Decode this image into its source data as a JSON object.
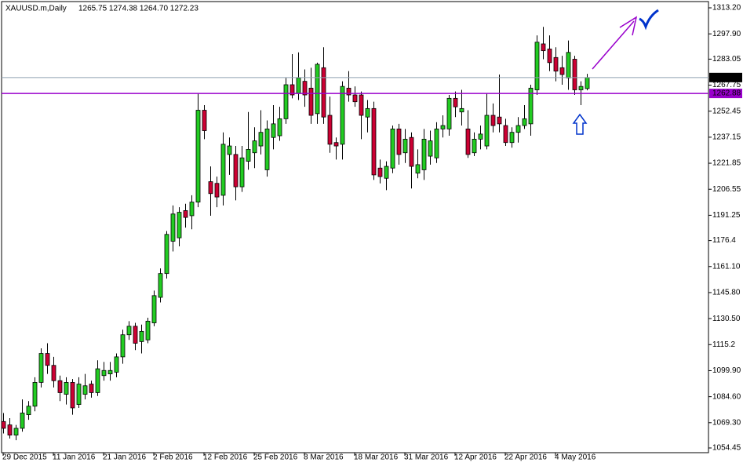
{
  "chart_data": {
    "type": "candlestick",
    "title": "XAUUSD.m,Daily",
    "subtitle": "1265.75 1274.38 1264.70 1272.23",
    "categories": [
      "29 Dec 2015",
      null,
      null,
      null,
      null,
      null,
      null,
      null,
      "11 Jan 2016",
      null,
      null,
      null,
      null,
      null,
      null,
      null,
      "21 Jan 2016",
      null,
      null,
      null,
      null,
      null,
      null,
      null,
      "2 Feb 2016",
      null,
      null,
      null,
      null,
      null,
      null,
      null,
      "12 Feb 2016",
      null,
      null,
      null,
      null,
      null,
      null,
      null,
      "25 Feb 2016",
      null,
      null,
      null,
      null,
      null,
      null,
      null,
      "8 Mar 2016",
      null,
      null,
      null,
      null,
      null,
      null,
      null,
      "18 Mar 2016",
      null,
      null,
      null,
      null,
      null,
      null,
      null,
      "31 Mar 2016",
      null,
      null,
      null,
      null,
      null,
      null,
      null,
      "12 Apr 2016",
      null,
      null,
      null,
      null,
      null,
      null,
      null,
      "22 Apr 2016",
      null,
      null,
      null,
      null,
      null,
      null,
      null,
      "4 May 2016",
      null,
      null,
      null,
      null,
      null
    ],
    "open": [
      1070,
      1068,
      1062,
      1066,
      1074,
      1079,
      1093,
      1110,
      1103,
      1094,
      1086,
      1093,
      1080,
      1086,
      1092,
      1087,
      1097,
      1098,
      1099,
      1108,
      1121,
      1126,
      1117,
      1118,
      1128,
      1143,
      1157,
      1176,
      1178,
      1194,
      1191,
      1199,
      1253,
      1211,
      1210,
      1203,
      1227,
      1227,
      1208,
      1223,
      1228,
      1232,
      1218,
      1237,
      1238,
      1248,
      1268,
      1263,
      1270,
      1266,
      1251,
      1278,
      1250,
      1234,
      1233,
      1266,
      1262,
      1262,
      1249,
      1254,
      1219,
      1213,
      1219,
      1242,
      1228,
      1237,
      1216,
      1218,
      1226,
      1225,
      1242,
      1242,
      1260,
      1252,
      1242,
      1228,
      1236,
      1232,
      1250,
      1249,
      1244,
      1234,
      1240,
      1244,
      1245,
      1265,
      1292,
      1289,
      1284,
      1278,
      1272,
      1283,
      1265,
      1265.75
    ],
    "high": [
      1075,
      1072,
      1068,
      1083,
      1082,
      1096,
      1113,
      1116,
      1108,
      1097,
      1096,
      1095,
      1096,
      1098,
      1094,
      1106,
      1105,
      1105,
      1110,
      1124,
      1129,
      1128,
      1127,
      1131,
      1147,
      1160,
      1182,
      1197,
      1196,
      1198,
      1203,
      1263,
      1256,
      1220,
      1214,
      1240,
      1237,
      1232,
      1232,
      1252,
      1243,
      1253,
      1247,
      1256,
      1255,
      1272,
      1286,
      1287,
      1277,
      1278,
      1281,
      1290,
      1261,
      1237,
      1270,
      1276,
      1267,
      1264,
      1259,
      1258,
      1224,
      1223,
      1244,
      1245,
      1242,
      1240,
      1230,
      1242,
      1241,
      1246,
      1250,
      1262,
      1264,
      1265,
      1253,
      1240,
      1244,
      1263,
      1257,
      1274,
      1248,
      1243,
      1249,
      1256,
      1268,
      1297,
      1302,
      1297,
      1290,
      1285,
      1294,
      1285,
      1270,
      1274.38
    ],
    "low": [
      1063,
      1060,
      1059,
      1064,
      1071,
      1076,
      1090,
      1098,
      1090,
      1082,
      1080,
      1074,
      1078,
      1083,
      1084,
      1085,
      1094,
      1094,
      1096,
      1104,
      1118,
      1112,
      1110,
      1116,
      1126,
      1140,
      1154,
      1170,
      1173,
      1184,
      1183,
      1196,
      1236,
      1191,
      1196,
      1197,
      1215,
      1200,
      1205,
      1218,
      1219,
      1227,
      1214,
      1230,
      1235,
      1245,
      1260,
      1259,
      1255,
      1245,
      1245,
      1245,
      1228,
      1224,
      1224,
      1258,
      1255,
      1236,
      1240,
      1212,
      1210,
      1206,
      1216,
      1221,
      1222,
      1207,
      1213,
      1212,
      1221,
      1222,
      1237,
      1238,
      1249,
      1244,
      1225,
      1226,
      1230,
      1230,
      1240,
      1240,
      1232,
      1231,
      1234,
      1242,
      1238,
      1262,
      1283,
      1276,
      1270,
      1268,
      1265,
      1262,
      1256,
      1264.7
    ],
    "close": [
      1066,
      1062,
      1066,
      1075,
      1079,
      1093,
      1110,
      1103,
      1094,
      1087,
      1093,
      1078,
      1092,
      1091,
      1087,
      1101,
      1100,
      1100,
      1108,
      1121,
      1126,
      1116,
      1123,
      1129,
      1144,
      1157,
      1180,
      1192,
      1193,
      1190,
      1199,
      1253,
      1241,
      1204,
      1202,
      1233,
      1232,
      1208,
      1225,
      1230,
      1235,
      1240,
      1242,
      1245,
      1248,
      1268,
      1262,
      1272,
      1262,
      1250,
      1280,
      1249,
      1233,
      1232,
      1267,
      1262,
      1258,
      1250,
      1254,
      1215,
      1214,
      1220,
      1242,
      1227,
      1236,
      1220,
      1221,
      1236,
      1235,
      1242,
      1244,
      1260,
      1255,
      1254,
      1227,
      1236,
      1239,
      1250,
      1244,
      1245,
      1234,
      1240,
      1244,
      1248,
      1266,
      1293,
      1288,
      1281,
      1276,
      1274,
      1287,
      1265,
      1267,
      1272.23
    ],
    "up_color": "#22cc22",
    "down_color": "#cc0033",
    "ylim": [
      1054.45,
      1313.2
    ],
    "yticks": [
      {
        "value": 1054.45,
        "label": "1054.45"
      },
      {
        "value": 1069.3,
        "label": "1069.30"
      },
      {
        "value": 1084.6,
        "label": "1084.60"
      },
      {
        "value": 1099.9,
        "label": "1099.90"
      },
      1115.2,
      {
        "value": 1130.5,
        "label": "1130.50"
      },
      {
        "value": 1145.8,
        "label": "1145.80"
      },
      {
        "value": 1161.1,
        "label": "1161.10"
      },
      1176.4,
      1191.25,
      1206.55,
      1221.85,
      1237.15,
      1252.45,
      1267.75,
      1283.05,
      {
        "value": 1297.9,
        "label": "1297.90"
      },
      {
        "value": 1313.2,
        "label": "1313.20"
      }
    ],
    "hlines": [
      {
        "value": 1272.23,
        "color": "#8fa0b0",
        "tag_color": "#000000"
      },
      {
        "value": 1262.88,
        "color": "#9900cc",
        "tag_color": "#9900cc"
      }
    ]
  }
}
